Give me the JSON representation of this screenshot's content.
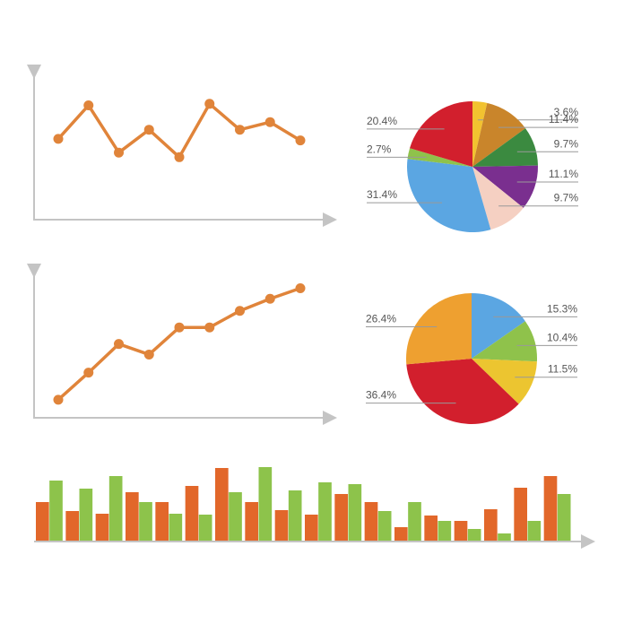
{
  "chart_data": [
    {
      "type": "line",
      "categories": [
        null,
        null,
        null,
        null,
        null,
        null,
        null,
        null,
        null
      ],
      "values": [
        53,
        75,
        44,
        59,
        41,
        76,
        59,
        64,
        52
      ],
      "color": "#e0843a",
      "ylim": [
        0,
        100
      ]
    },
    {
      "type": "pie",
      "labels": [
        "3.6%",
        "11.4%",
        "9.7%",
        "11.1%",
        "9.7%",
        "31.4%",
        "2.7%",
        "20.4%"
      ],
      "values": [
        3.6,
        11.4,
        9.7,
        11.1,
        9.7,
        31.4,
        2.7,
        20.4
      ],
      "colors": [
        "#f2c230",
        "#c9852b",
        "#3b8a40",
        "#7a2f8f",
        "#f5d0c2",
        "#5ba6e2",
        "#8fc24b",
        "#d21f2d"
      ]
    },
    {
      "type": "line",
      "categories": [
        null,
        null,
        null,
        null,
        null,
        null,
        null,
        null,
        null
      ],
      "values": [
        12,
        30,
        49,
        42,
        60,
        60,
        71,
        79,
        86
      ],
      "color": "#e0843a",
      "ylim": [
        0,
        100
      ]
    },
    {
      "type": "pie",
      "labels": [
        "15.3%",
        "10.4%",
        "11.5%",
        "36.4%",
        "26.4%"
      ],
      "values": [
        15.3,
        10.4,
        11.5,
        36.4,
        26.4
      ],
      "colors": [
        "#5ba6e2",
        "#8fc24b",
        "#ecc530",
        "#d21f2d",
        "#eea030"
      ]
    },
    {
      "type": "bar",
      "categories": [
        null,
        null,
        null,
        null,
        null,
        null,
        null,
        null,
        null,
        null,
        null,
        null,
        null,
        null,
        null,
        null,
        null,
        null
      ],
      "ylim": [
        0,
        90
      ],
      "series": [
        {
          "color": "#e2672a",
          "values": [
            43,
            33,
            30,
            54,
            43,
            61,
            81,
            43,
            34,
            29,
            52,
            43,
            15,
            28,
            22,
            35,
            59,
            72
          ]
        },
        {
          "color": "#8dc34b",
          "values": [
            67,
            58,
            72,
            43,
            30,
            29,
            54,
            82,
            56,
            65,
            63,
            33,
            43,
            22,
            13,
            8,
            22,
            52
          ]
        }
      ]
    }
  ]
}
